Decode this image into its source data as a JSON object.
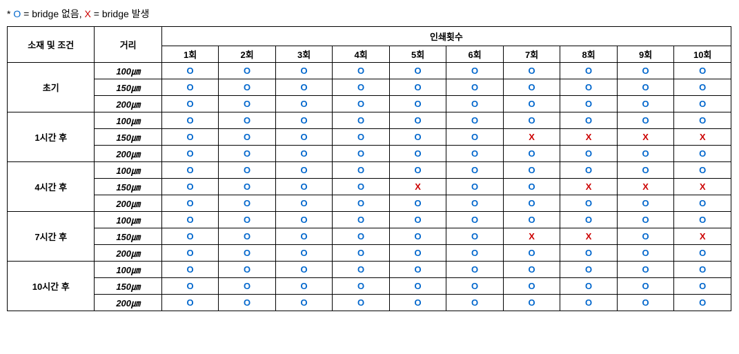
{
  "legend": {
    "prefix": "* ",
    "o_symbol": "O",
    "o_text": " = bridge 없음, ",
    "x_symbol": "X",
    "x_text": " = bridge 발생"
  },
  "headers": {
    "material": "소재 및 조건",
    "distance": "거리",
    "print_count": "인쇄횟수",
    "counts": [
      "1회",
      "2회",
      "3회",
      "4회",
      "5회",
      "6회",
      "7회",
      "8회",
      "9회",
      "10회"
    ]
  },
  "materials": [
    {
      "name": "초기",
      "rows": [
        {
          "distance": "100㎛",
          "values": [
            "O",
            "O",
            "O",
            "O",
            "O",
            "O",
            "O",
            "O",
            "O",
            "O"
          ]
        },
        {
          "distance": "150㎛",
          "values": [
            "O",
            "O",
            "O",
            "O",
            "O",
            "O",
            "O",
            "O",
            "O",
            "O"
          ]
        },
        {
          "distance": "200㎛",
          "values": [
            "O",
            "O",
            "O",
            "O",
            "O",
            "O",
            "O",
            "O",
            "O",
            "O"
          ]
        }
      ]
    },
    {
      "name": "1시간 후",
      "rows": [
        {
          "distance": "100㎛",
          "values": [
            "O",
            "O",
            "O",
            "O",
            "O",
            "O",
            "O",
            "O",
            "O",
            "O"
          ]
        },
        {
          "distance": "150㎛",
          "values": [
            "O",
            "O",
            "O",
            "O",
            "O",
            "O",
            "X",
            "X",
            "X",
            "X"
          ]
        },
        {
          "distance": "200㎛",
          "values": [
            "O",
            "O",
            "O",
            "O",
            "O",
            "O",
            "O",
            "O",
            "O",
            "O"
          ]
        }
      ]
    },
    {
      "name": "4시간 후",
      "rows": [
        {
          "distance": "100㎛",
          "values": [
            "O",
            "O",
            "O",
            "O",
            "O",
            "O",
            "O",
            "O",
            "O",
            "O"
          ]
        },
        {
          "distance": "150㎛",
          "values": [
            "O",
            "O",
            "O",
            "O",
            "X",
            "O",
            "O",
            "X",
            "X",
            "X"
          ]
        },
        {
          "distance": "200㎛",
          "values": [
            "O",
            "O",
            "O",
            "O",
            "O",
            "O",
            "O",
            "O",
            "O",
            "O"
          ]
        }
      ]
    },
    {
      "name": "7시간 후",
      "rows": [
        {
          "distance": "100㎛",
          "values": [
            "O",
            "O",
            "O",
            "O",
            "O",
            "O",
            "O",
            "O",
            "O",
            "O"
          ]
        },
        {
          "distance": "150㎛",
          "values": [
            "O",
            "O",
            "O",
            "O",
            "O",
            "O",
            "X",
            "X",
            "O",
            "X"
          ]
        },
        {
          "distance": "200㎛",
          "values": [
            "O",
            "O",
            "O",
            "O",
            "O",
            "O",
            "O",
            "O",
            "O",
            "O"
          ]
        }
      ]
    },
    {
      "name": "10시간 후",
      "rows": [
        {
          "distance": "100㎛",
          "values": [
            "O",
            "O",
            "O",
            "O",
            "O",
            "O",
            "O",
            "O",
            "O",
            "O"
          ]
        },
        {
          "distance": "150㎛",
          "values": [
            "O",
            "O",
            "O",
            "O",
            "O",
            "O",
            "O",
            "O",
            "O",
            "O"
          ]
        },
        {
          "distance": "200㎛",
          "values": [
            "O",
            "O",
            "O",
            "O",
            "O",
            "O",
            "O",
            "O",
            "O",
            "O"
          ]
        }
      ]
    }
  ]
}
